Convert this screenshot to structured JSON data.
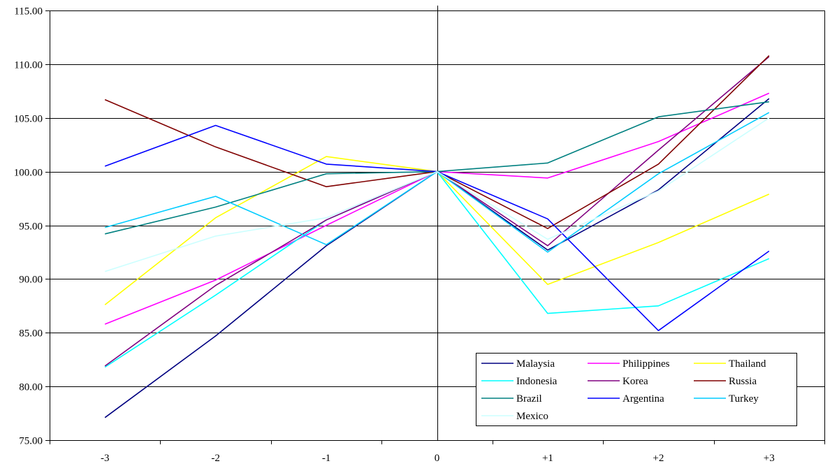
{
  "chart_data": {
    "type": "line",
    "title": "",
    "xlabel": "",
    "ylabel": "",
    "categories": [
      "-3",
      "-2",
      "-1",
      "0",
      "+1",
      "+2",
      "+3"
    ],
    "ylim": [
      75,
      115
    ],
    "ytick_values": [
      75,
      80,
      85,
      90,
      95,
      100,
      105,
      110,
      115
    ],
    "ytick_labels": [
      "75.00",
      "80.00",
      "85.00",
      "90.00",
      "95.00",
      "100.00",
      "105.00",
      "110.00",
      "115.00"
    ],
    "grid": "horizontal",
    "legend_position": "bottom-right",
    "series": [
      {
        "name": "Malaysia",
        "color": "#000080",
        "values": [
          77.1,
          84.7,
          93.1,
          100,
          92.7,
          98.3,
          106.8
        ]
      },
      {
        "name": "Philippines",
        "color": "#ff00ff",
        "values": [
          85.8,
          89.9,
          95.0,
          100,
          99.4,
          102.8,
          107.3
        ]
      },
      {
        "name": "Thailand",
        "color": "#ffff00",
        "values": [
          87.6,
          95.7,
          101.4,
          100,
          89.5,
          93.4,
          97.9
        ]
      },
      {
        "name": "Indonesia",
        "color": "#00ffff",
        "values": [
          81.8,
          88.5,
          95.5,
          100,
          86.8,
          87.5,
          91.9
        ]
      },
      {
        "name": "Korea",
        "color": "#800080",
        "values": [
          81.9,
          89.4,
          95.5,
          100,
          93.1,
          102.0,
          110.7
        ]
      },
      {
        "name": "Russia",
        "color": "#800000",
        "values": [
          106.7,
          102.3,
          98.6,
          100,
          94.7,
          100.7,
          110.8
        ]
      },
      {
        "name": "Brazil",
        "color": "#008080",
        "values": [
          94.2,
          96.7,
          99.8,
          100,
          100.8,
          105.1,
          106.5
        ]
      },
      {
        "name": "Argentina",
        "color": "#0000ff",
        "values": [
          100.5,
          104.3,
          100.7,
          100,
          95.6,
          85.2,
          92.6
        ]
      },
      {
        "name": "Turkey",
        "color": "#00ccff",
        "values": [
          94.8,
          97.7,
          93.2,
          100,
          92.5,
          99.8,
          105.5
        ]
      },
      {
        "name": "Mexico",
        "color": "#ccffff",
        "values": [
          90.7,
          94.0,
          95.7,
          100,
          93.7,
          98.2,
          105.0
        ]
      }
    ]
  }
}
